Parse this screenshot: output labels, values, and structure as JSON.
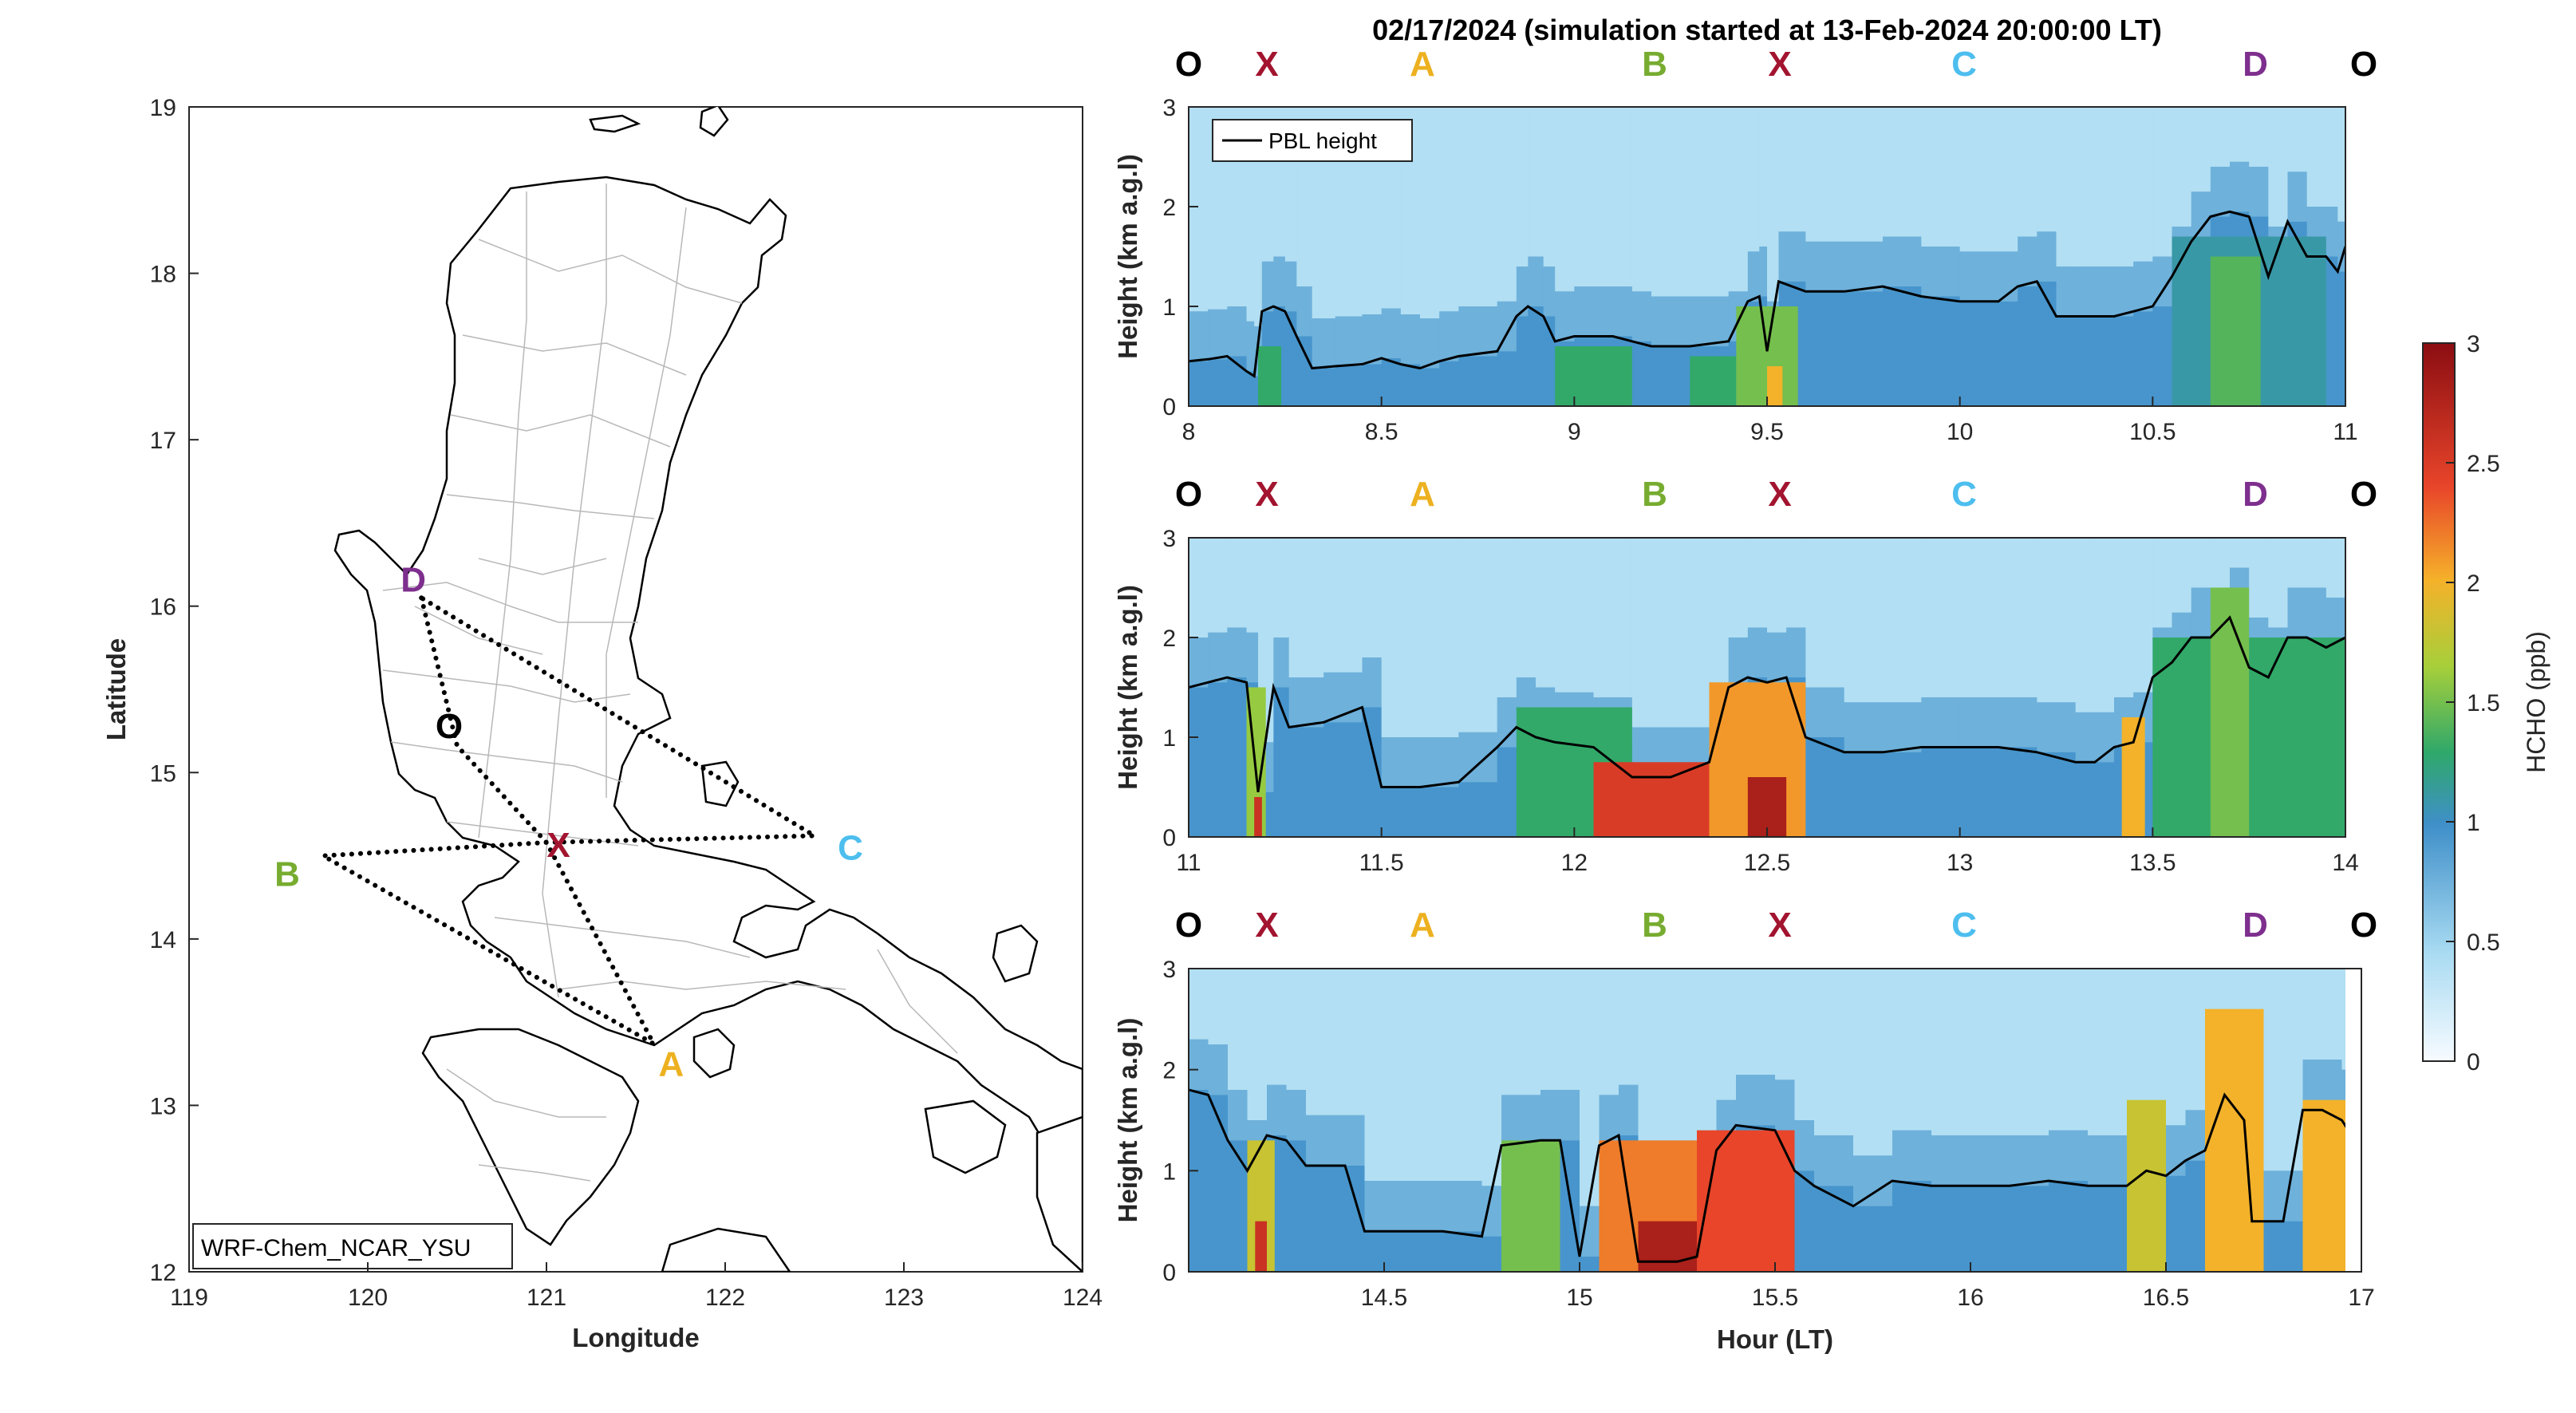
{
  "title": "02/17/2024 (simulation started at 13-Feb-2024 20:00:00 LT)",
  "colors": {
    "O": "#000000",
    "X": "#a2142f",
    "A": "#edb120",
    "B": "#77ac30",
    "C": "#4dbeee",
    "D": "#7e2f8e"
  },
  "map": {
    "model_label": "WRF-Chem_NCAR_YSU",
    "xlabel": "Longitude",
    "ylabel": "Latitude",
    "xlim": [
      119,
      124
    ],
    "ylim": [
      12,
      19
    ],
    "xticks": [
      "119",
      "120",
      "121",
      "122",
      "123",
      "124"
    ],
    "yticks": [
      "12",
      "13",
      "14",
      "15",
      "16",
      "17",
      "18",
      "19"
    ],
    "points": [
      {
        "label": "D",
        "lon": 120.3,
        "lat": 16.05
      },
      {
        "label": "O",
        "lon": 120.5,
        "lat": 15.16
      },
      {
        "label": "X",
        "lon": 121.0,
        "lat": 14.58
      },
      {
        "label": "C",
        "lon": 122.5,
        "lat": 14.62
      },
      {
        "label": "B",
        "lon": 119.75,
        "lat": 14.5
      },
      {
        "label": "A",
        "lon": 121.6,
        "lat": 13.37
      }
    ],
    "route": [
      "D",
      "O",
      "X",
      "A",
      "B",
      "X",
      "C",
      "D"
    ]
  },
  "chart_data": [
    {
      "type": "heatmap",
      "xlim": [
        8,
        11
      ],
      "ylim": [
        0,
        3
      ],
      "xticks": [
        "8",
        "8.5",
        "9",
        "9.5",
        "10",
        "10.5",
        "11"
      ],
      "yticks": [
        "0",
        "1",
        "2",
        "3"
      ],
      "ylabel": "Height (km a.g.l)",
      "xlabel": "",
      "legend": "PBL height",
      "legend_loc": "top-left",
      "markers": [
        "O",
        "X",
        "A",
        "B",
        "X",
        "C",
        "D",
        "O"
      ],
      "pbl": [
        [
          8,
          0.45
        ],
        [
          8.05,
          0.47
        ],
        [
          8.1,
          0.5
        ],
        [
          8.15,
          0.35
        ],
        [
          8.17,
          0.3
        ],
        [
          8.19,
          0.95
        ],
        [
          8.22,
          1.0
        ],
        [
          8.25,
          0.95
        ],
        [
          8.28,
          0.7
        ],
        [
          8.32,
          0.38
        ],
        [
          8.38,
          0.4
        ],
        [
          8.45,
          0.42
        ],
        [
          8.5,
          0.48
        ],
        [
          8.55,
          0.42
        ],
        [
          8.6,
          0.38
        ],
        [
          8.65,
          0.45
        ],
        [
          8.7,
          0.5
        ],
        [
          8.8,
          0.55
        ],
        [
          8.85,
          0.9
        ],
        [
          8.88,
          1.0
        ],
        [
          8.92,
          0.9
        ],
        [
          8.95,
          0.65
        ],
        [
          9.0,
          0.7
        ],
        [
          9.05,
          0.7
        ],
        [
          9.1,
          0.7
        ],
        [
          9.15,
          0.65
        ],
        [
          9.2,
          0.6
        ],
        [
          9.3,
          0.6
        ],
        [
          9.4,
          0.65
        ],
        [
          9.45,
          1.05
        ],
        [
          9.48,
          1.1
        ],
        [
          9.5,
          0.55
        ],
        [
          9.53,
          1.25
        ],
        [
          9.6,
          1.15
        ],
        [
          9.7,
          1.15
        ],
        [
          9.8,
          1.2
        ],
        [
          9.9,
          1.1
        ],
        [
          10.0,
          1.05
        ],
        [
          10.1,
          1.05
        ],
        [
          10.15,
          1.2
        ],
        [
          10.2,
          1.25
        ],
        [
          10.25,
          0.9
        ],
        [
          10.3,
          0.9
        ],
        [
          10.4,
          0.9
        ],
        [
          10.45,
          0.95
        ],
        [
          10.5,
          1.0
        ],
        [
          10.55,
          1.3
        ],
        [
          10.6,
          1.65
        ],
        [
          10.65,
          1.9
        ],
        [
          10.7,
          1.95
        ],
        [
          10.75,
          1.9
        ],
        [
          10.8,
          1.3
        ],
        [
          10.85,
          1.85
        ],
        [
          10.9,
          1.5
        ],
        [
          10.95,
          1.5
        ],
        [
          10.98,
          1.35
        ],
        [
          11.0,
          1.6
        ]
      ],
      "hotspots": [
        {
          "x": [
            8.18,
            8.24
          ],
          "y": [
            0,
            0.6
          ],
          "v": 1.3
        },
        {
          "x": [
            8.95,
            9.15
          ],
          "y": [
            0,
            0.6
          ],
          "v": 1.3
        },
        {
          "x": [
            9.3,
            9.42
          ],
          "y": [
            0,
            0.5
          ],
          "v": 1.3
        },
        {
          "x": [
            9.42,
            9.58
          ],
          "y": [
            0,
            1.0
          ],
          "v": 1.5
        },
        {
          "x": [
            9.5,
            9.54
          ],
          "y": [
            0,
            0.4
          ],
          "v": 2.0
        },
        {
          "x": [
            10.55,
            10.95
          ],
          "y": [
            0,
            1.7
          ],
          "v": 1.1
        },
        {
          "x": [
            10.65,
            10.78
          ],
          "y": [
            0,
            1.5
          ],
          "v": 1.4
        }
      ]
    },
    {
      "type": "heatmap",
      "xlim": [
        11,
        14
      ],
      "ylim": [
        0,
        3
      ],
      "xticks": [
        "11",
        "11.5",
        "12",
        "12.5",
        "13",
        "13.5",
        "14"
      ],
      "yticks": [
        "0",
        "1",
        "2",
        "3"
      ],
      "ylabel": "Height (km a.g.l)",
      "xlabel": "",
      "markers": [
        "O",
        "X",
        "A",
        "B",
        "X",
        "C",
        "D",
        "O"
      ],
      "pbl": [
        [
          11,
          1.5
        ],
        [
          11.05,
          1.55
        ],
        [
          11.1,
          1.6
        ],
        [
          11.15,
          1.55
        ],
        [
          11.18,
          0.45
        ],
        [
          11.22,
          1.5
        ],
        [
          11.26,
          1.1
        ],
        [
          11.35,
          1.15
        ],
        [
          11.45,
          1.3
        ],
        [
          11.5,
          0.5
        ],
        [
          11.6,
          0.5
        ],
        [
          11.7,
          0.55
        ],
        [
          11.8,
          0.9
        ],
        [
          11.85,
          1.1
        ],
        [
          11.9,
          1.0
        ],
        [
          11.95,
          0.95
        ],
        [
          12.05,
          0.9
        ],
        [
          12.15,
          0.6
        ],
        [
          12.25,
          0.6
        ],
        [
          12.35,
          0.75
        ],
        [
          12.4,
          1.5
        ],
        [
          12.45,
          1.6
        ],
        [
          12.5,
          1.55
        ],
        [
          12.55,
          1.6
        ],
        [
          12.6,
          1.0
        ],
        [
          12.7,
          0.85
        ],
        [
          12.8,
          0.85
        ],
        [
          12.9,
          0.9
        ],
        [
          13.0,
          0.9
        ],
        [
          13.1,
          0.9
        ],
        [
          13.2,
          0.85
        ],
        [
          13.3,
          0.75
        ],
        [
          13.35,
          0.75
        ],
        [
          13.4,
          0.9
        ],
        [
          13.45,
          0.95
        ],
        [
          13.5,
          1.6
        ],
        [
          13.55,
          1.75
        ],
        [
          13.6,
          2.0
        ],
        [
          13.65,
          2.0
        ],
        [
          13.7,
          2.2
        ],
        [
          13.75,
          1.7
        ],
        [
          13.8,
          1.6
        ],
        [
          13.85,
          2.0
        ],
        [
          13.9,
          2.0
        ],
        [
          13.95,
          1.9
        ],
        [
          14.0,
          2.0
        ]
      ],
      "hotspots": [
        {
          "x": [
            11.15,
            11.2
          ],
          "y": [
            0,
            1.5
          ],
          "v": 1.6
        },
        {
          "x": [
            11.17,
            11.19
          ],
          "y": [
            0,
            0.4
          ],
          "v": 2.6
        },
        {
          "x": [
            11.85,
            12.15
          ],
          "y": [
            0,
            1.3
          ],
          "v": 1.3
        },
        {
          "x": [
            12.05,
            12.35
          ],
          "y": [
            0,
            0.75
          ],
          "v": 2.5
        },
        {
          "x": [
            12.35,
            12.6
          ],
          "y": [
            0,
            1.55
          ],
          "v": 2.1
        },
        {
          "x": [
            12.45,
            12.55
          ],
          "y": [
            0,
            0.6
          ],
          "v": 2.8
        },
        {
          "x": [
            13.42,
            13.48
          ],
          "y": [
            0,
            1.2
          ],
          "v": 2.0
        },
        {
          "x": [
            13.5,
            14.0
          ],
          "y": [
            0,
            2.0
          ],
          "v": 1.3
        },
        {
          "x": [
            13.65,
            13.75
          ],
          "y": [
            0,
            2.5
          ],
          "v": 1.5
        }
      ]
    },
    {
      "type": "heatmap",
      "xlim": [
        14,
        17
      ],
      "ylim": [
        0,
        3
      ],
      "xticks": [
        "14.5",
        "15",
        "15.5",
        "16",
        "16.5",
        "17"
      ],
      "yticks": [
        "0",
        "1",
        "2",
        "3"
      ],
      "ylabel": "Height (km a.g.l)",
      "xlabel": "Hour (LT)",
      "markers": [
        "O",
        "X",
        "A",
        "B",
        "X",
        "C",
        "D",
        "O"
      ],
      "pbl": [
        [
          14,
          1.8
        ],
        [
          14.05,
          1.75
        ],
        [
          14.1,
          1.3
        ],
        [
          14.15,
          1.0
        ],
        [
          14.2,
          1.35
        ],
        [
          14.25,
          1.3
        ],
        [
          14.3,
          1.05
        ],
        [
          14.4,
          1.05
        ],
        [
          14.45,
          0.4
        ],
        [
          14.55,
          0.4
        ],
        [
          14.65,
          0.4
        ],
        [
          14.75,
          0.35
        ],
        [
          14.8,
          1.25
        ],
        [
          14.9,
          1.3
        ],
        [
          14.95,
          1.3
        ],
        [
          15.0,
          0.15
        ],
        [
          15.05,
          1.25
        ],
        [
          15.1,
          1.35
        ],
        [
          15.15,
          0.1
        ],
        [
          15.25,
          0.1
        ],
        [
          15.3,
          0.15
        ],
        [
          15.35,
          1.2
        ],
        [
          15.4,
          1.45
        ],
        [
          15.5,
          1.4
        ],
        [
          15.55,
          1.0
        ],
        [
          15.6,
          0.85
        ],
        [
          15.7,
          0.65
        ],
        [
          15.8,
          0.9
        ],
        [
          15.9,
          0.85
        ],
        [
          16.0,
          0.85
        ],
        [
          16.1,
          0.85
        ],
        [
          16.2,
          0.9
        ],
        [
          16.3,
          0.85
        ],
        [
          16.4,
          0.85
        ],
        [
          16.45,
          1.0
        ],
        [
          16.5,
          0.95
        ],
        [
          16.55,
          1.1
        ],
        [
          16.6,
          1.2
        ],
        [
          16.65,
          1.75
        ],
        [
          16.7,
          1.5
        ],
        [
          16.72,
          0.5
        ],
        [
          16.8,
          0.5
        ],
        [
          16.85,
          1.6
        ],
        [
          16.9,
          1.6
        ],
        [
          16.95,
          1.5
        ],
        [
          17.0,
          1.2
        ]
      ],
      "hotspots": [
        {
          "x": [
            14.15,
            14.22
          ],
          "y": [
            0,
            1.3
          ],
          "v": 1.8
        },
        {
          "x": [
            14.17,
            14.2
          ],
          "y": [
            0,
            0.5
          ],
          "v": 2.6
        },
        {
          "x": [
            14.8,
            14.95
          ],
          "y": [
            0,
            1.3
          ],
          "v": 1.5
        },
        {
          "x": [
            15.05,
            15.5
          ],
          "y": [
            0,
            1.3
          ],
          "v": 2.2
        },
        {
          "x": [
            15.15,
            15.3
          ],
          "y": [
            0,
            0.5
          ],
          "v": 2.8
        },
        {
          "x": [
            15.3,
            15.55
          ],
          "y": [
            0,
            1.4
          ],
          "v": 2.4
        },
        {
          "x": [
            16.4,
            16.5
          ],
          "y": [
            0,
            1.7
          ],
          "v": 1.8
        },
        {
          "x": [
            16.6,
            16.75
          ],
          "y": [
            0,
            2.6
          ],
          "v": 2.0
        },
        {
          "x": [
            16.85,
            17.0
          ],
          "y": [
            0,
            1.7
          ],
          "v": 2.0
        }
      ]
    }
  ],
  "colorbar": {
    "label": "HCHO (ppb)",
    "ticks": [
      "0",
      "0.5",
      "1",
      "1.5",
      "2",
      "2.5",
      "3"
    ],
    "range": [
      0,
      3
    ]
  }
}
